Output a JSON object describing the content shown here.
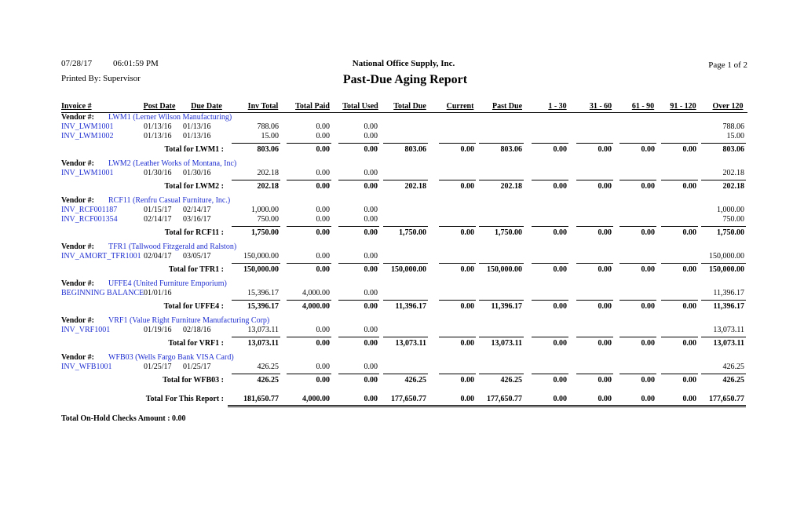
{
  "header": {
    "date": "07/28/17",
    "time": "06:01:59 PM",
    "printed_by": "Printed By: Supervisor",
    "company": "National Office Supply, Inc.",
    "title": "Past-Due Aging Report",
    "page": "Page 1 of 2"
  },
  "columns": [
    "Invoice #",
    "Post Date",
    "Due Date",
    "Inv Total",
    "Total Paid",
    "Total Used",
    "Total Due",
    "Current",
    "Past Due",
    "1 - 30",
    "31 - 60",
    "61 - 90",
    "91 - 120",
    "Over 120"
  ],
  "vendor_label": "Vendor #:",
  "vendors": [
    {
      "name": "LWM1 (Lerner Wilson Manufacturing)",
      "invoices": [
        {
          "invoice": "INV_LWM1001",
          "post_date": "01/13/16",
          "due_date": "01/13/16",
          "inv_total": "788.06",
          "total_paid": "0.00",
          "total_used": "0.00",
          "over_120": "788.06"
        },
        {
          "invoice": "INV_LWM1002",
          "post_date": "01/13/16",
          "due_date": "01/13/16",
          "inv_total": "15.00",
          "total_paid": "0.00",
          "total_used": "0.00",
          "over_120": "15.00"
        }
      ],
      "total_label": "Total for LWM1 :",
      "totals": [
        "803.06",
        "0.00",
        "0.00",
        "803.06",
        "0.00",
        "803.06",
        "0.00",
        "0.00",
        "0.00",
        "0.00",
        "803.06"
      ]
    },
    {
      "name": "LWM2 (Leather Works of Montana, Inc)",
      "invoices": [
        {
          "invoice": "INV_LWM1001",
          "post_date": "01/30/16",
          "due_date": "01/30/16",
          "inv_total": "202.18",
          "total_paid": "0.00",
          "total_used": "0.00",
          "over_120": "202.18"
        }
      ],
      "total_label": "Total for LWM2 :",
      "totals": [
        "202.18",
        "0.00",
        "0.00",
        "202.18",
        "0.00",
        "202.18",
        "0.00",
        "0.00",
        "0.00",
        "0.00",
        "202.18"
      ]
    },
    {
      "name": "RCF11 (Renfru Casual Furniture, Inc.)",
      "invoices": [
        {
          "invoice": "INV_RCF001187",
          "post_date": "01/15/17",
          "due_date": "02/14/17",
          "inv_total": "1,000.00",
          "total_paid": "0.00",
          "total_used": "0.00",
          "over_120": "1,000.00"
        },
        {
          "invoice": "INV_RCF001354",
          "post_date": "02/14/17",
          "due_date": "03/16/17",
          "inv_total": "750.00",
          "total_paid": "0.00",
          "total_used": "0.00",
          "over_120": "750.00"
        }
      ],
      "total_label": "Total for RCF11 :",
      "totals": [
        "1,750.00",
        "0.00",
        "0.00",
        "1,750.00",
        "0.00",
        "1,750.00",
        "0.00",
        "0.00",
        "0.00",
        "0.00",
        "1,750.00"
      ]
    },
    {
      "name": "TFR1 (Tallwood Fitzgerald and Ralston)",
      "invoices": [
        {
          "invoice": "INV_AMORT_TFR1001",
          "post_date": "02/04/17",
          "due_date": "03/05/17",
          "inv_total": "150,000.00",
          "total_paid": "0.00",
          "total_used": "0.00",
          "over_120": "150,000.00"
        }
      ],
      "total_label": "Total for TFR1 :",
      "totals": [
        "150,000.00",
        "0.00",
        "0.00",
        "150,000.00",
        "0.00",
        "150,000.00",
        "0.00",
        "0.00",
        "0.00",
        "0.00",
        "150,000.00"
      ]
    },
    {
      "name": "UFFE4 (United Furniture Emporium)",
      "invoices": [
        {
          "invoice": "BEGINNING BALANCE",
          "post_date": "01/01/16",
          "due_date": null,
          "inv_total": "15,396.17",
          "total_paid": "4,000.00",
          "total_used": "0.00",
          "over_120": "11,396.17"
        }
      ],
      "total_label": "Total for UFFE4 :",
      "totals": [
        "15,396.17",
        "4,000.00",
        "0.00",
        "11,396.17",
        "0.00",
        "11,396.17",
        "0.00",
        "0.00",
        "0.00",
        "0.00",
        "11,396.17"
      ]
    },
    {
      "name": "VRF1 (Value Right Furniture Manufacturing Corp)",
      "invoices": [
        {
          "invoice": "INV_VRF1001",
          "post_date": "01/19/16",
          "due_date": "02/18/16",
          "inv_total": "13,073.11",
          "total_paid": "0.00",
          "total_used": "0.00",
          "over_120": "13,073.11"
        }
      ],
      "total_label": "Total for VRF1 :",
      "totals": [
        "13,073.11",
        "0.00",
        "0.00",
        "13,073.11",
        "0.00",
        "13,073.11",
        "0.00",
        "0.00",
        "0.00",
        "0.00",
        "13,073.11"
      ]
    },
    {
      "name": "WFB03 (Wells Fargo Bank VISA Card)",
      "invoices": [
        {
          "invoice": "INV_WFB1001",
          "post_date": "01/25/17",
          "due_date": "01/25/17",
          "inv_total": "426.25",
          "total_paid": "0.00",
          "total_used": "0.00",
          "over_120": "426.25"
        }
      ],
      "total_label": "Total for WFB03 :",
      "totals": [
        "426.25",
        "0.00",
        "0.00",
        "426.25",
        "0.00",
        "426.25",
        "0.00",
        "0.00",
        "0.00",
        "0.00",
        "426.25"
      ]
    }
  ],
  "report_total": {
    "label": "Total For This Report :",
    "values": [
      "181,650.77",
      "4,000.00",
      "0.00",
      "177,650.77",
      "0.00",
      "177,650.77",
      "0.00",
      "0.00",
      "0.00",
      "0.00",
      "177,650.77"
    ]
  },
  "on_hold": "Total On-Hold Checks Amount : 0.00"
}
